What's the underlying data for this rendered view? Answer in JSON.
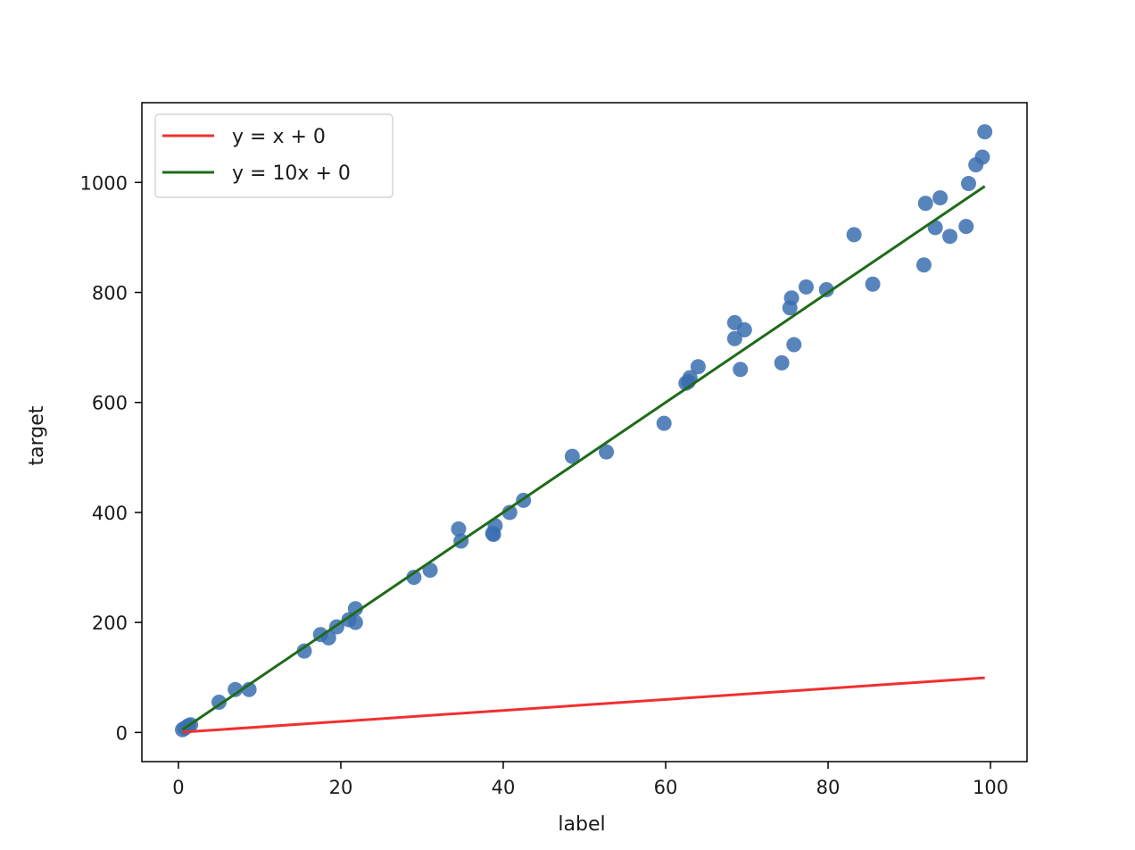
{
  "chart_data": {
    "type": "scatter",
    "title": "",
    "xlabel": "label",
    "ylabel": "target",
    "xlim": [
      -4.5,
      104.5
    ],
    "ylim": [
      -53,
      1145
    ],
    "xticks": [
      0,
      20,
      40,
      60,
      80,
      100
    ],
    "yticks": [
      0,
      200,
      400,
      600,
      800,
      1000
    ],
    "grid": false,
    "legend_position": "upper-left",
    "scatter": {
      "color": "#3b6fb0",
      "points": [
        [
          0.5,
          5
        ],
        [
          0.8,
          8
        ],
        [
          1.2,
          12
        ],
        [
          1.5,
          14
        ],
        [
          5.0,
          55
        ],
        [
          7.0,
          78
        ],
        [
          8.7,
          78
        ],
        [
          15.5,
          148
        ],
        [
          17.5,
          178
        ],
        [
          18.5,
          172
        ],
        [
          19.5,
          192
        ],
        [
          21.0,
          205
        ],
        [
          21.8,
          225
        ],
        [
          21.8,
          200
        ],
        [
          29.0,
          282
        ],
        [
          31.0,
          295
        ],
        [
          34.5,
          370
        ],
        [
          34.8,
          348
        ],
        [
          38.7,
          362
        ],
        [
          38.8,
          360
        ],
        [
          39.0,
          376
        ],
        [
          40.8,
          400
        ],
        [
          42.5,
          422
        ],
        [
          48.5,
          502
        ],
        [
          52.7,
          510
        ],
        [
          59.8,
          562
        ],
        [
          62.5,
          635
        ],
        [
          62.8,
          638
        ],
        [
          63.0,
          645
        ],
        [
          64.0,
          665
        ],
        [
          68.5,
          745
        ],
        [
          68.5,
          716
        ],
        [
          69.2,
          660
        ],
        [
          69.7,
          732
        ],
        [
          74.3,
          672
        ],
        [
          75.3,
          772
        ],
        [
          75.5,
          790
        ],
        [
          75.8,
          705
        ],
        [
          77.3,
          810
        ],
        [
          79.8,
          805
        ],
        [
          83.2,
          905
        ],
        [
          85.5,
          815
        ],
        [
          91.8,
          850
        ],
        [
          92.0,
          962
        ],
        [
          93.2,
          918
        ],
        [
          93.8,
          972
        ],
        [
          95.0,
          902
        ],
        [
          97.0,
          920
        ],
        [
          97.3,
          998
        ],
        [
          98.2,
          1032
        ],
        [
          99.0,
          1046
        ],
        [
          99.3,
          1092
        ]
      ]
    },
    "series": [
      {
        "name": "y = x + 0",
        "color": "#f03030",
        "x": [
          0.5,
          99.3
        ],
        "y": [
          0.5,
          99.3
        ]
      },
      {
        "name": "y = 10x + 0",
        "color": "#1f6b1a",
        "x": [
          0.5,
          99.3
        ],
        "y": [
          5,
          993
        ]
      }
    ]
  }
}
